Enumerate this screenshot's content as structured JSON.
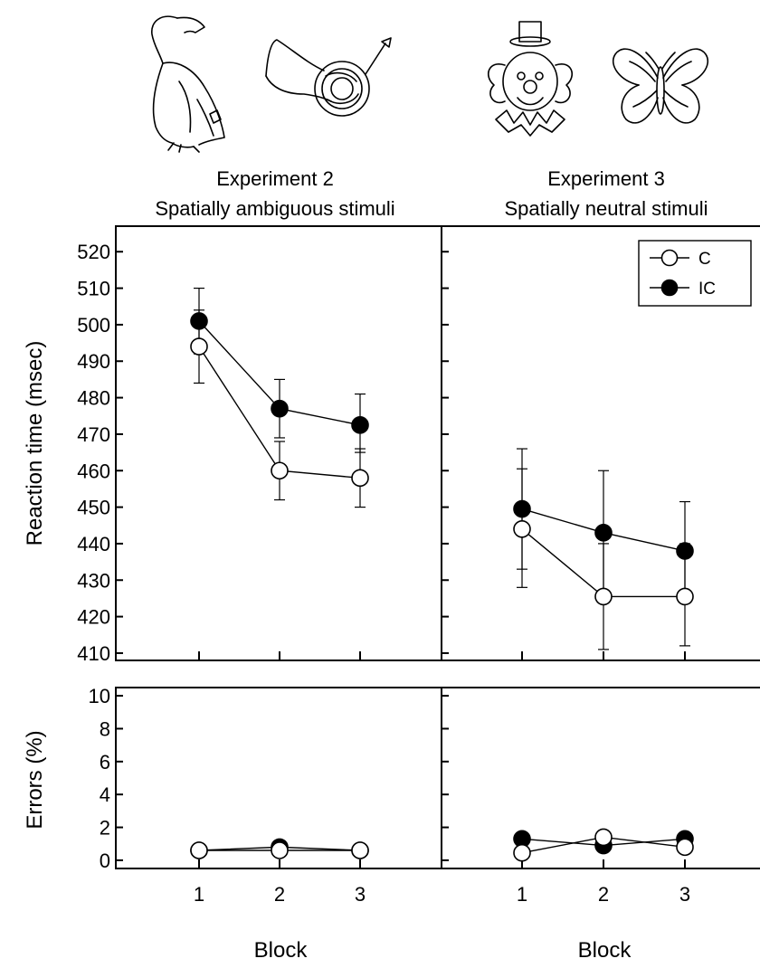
{
  "panels": [
    {
      "title_line1": "Experiment 2",
      "title_line2": "Spatially ambiguous stimuli"
    },
    {
      "title_line1": "Experiment 3",
      "title_line2": "Spatially neutral stimuli"
    }
  ],
  "icons": [
    "eagle-icon",
    "french-horn-icon",
    "clown-icon",
    "butterfly-icon"
  ],
  "legend": {
    "entries": [
      {
        "label": "C",
        "marker": "open-circle"
      },
      {
        "label": "IC",
        "marker": "filled-circle"
      }
    ]
  },
  "chart_data": [
    {
      "type": "line",
      "panel": "Experiment 2 / Spatially ambiguous stimuli",
      "measure": "reaction_time",
      "x": [
        1,
        2,
        3
      ],
      "ylabel": "Reaction time (msec)",
      "ylim": [
        408,
        527
      ],
      "yticks": [
        410,
        420,
        430,
        440,
        450,
        460,
        470,
        480,
        490,
        500,
        510,
        520
      ],
      "series": [
        {
          "name": "C",
          "marker": "open",
          "values": [
            494,
            460,
            458
          ],
          "err_low": [
            484,
            452,
            450
          ],
          "err_high": [
            504,
            468,
            466
          ]
        },
        {
          "name": "IC",
          "marker": "filled",
          "values": [
            501,
            477,
            472.5
          ],
          "err_low": [
            492,
            469,
            465
          ],
          "err_high": [
            510,
            485,
            481
          ]
        }
      ]
    },
    {
      "type": "line",
      "panel": "Experiment 3 / Spatially neutral stimuli",
      "measure": "reaction_time",
      "x": [
        1,
        2,
        3
      ],
      "ylim": [
        408,
        527
      ],
      "series": [
        {
          "name": "C",
          "marker": "open",
          "values": [
            444,
            425.5,
            425.5
          ],
          "err_low": [
            428,
            411,
            412
          ],
          "err_high": [
            460.5,
            440,
            440
          ]
        },
        {
          "name": "IC",
          "marker": "filled",
          "values": [
            449.5,
            443,
            438
          ],
          "err_low": [
            433,
            426,
            424.5
          ],
          "err_high": [
            466,
            460,
            451.5
          ]
        }
      ]
    },
    {
      "type": "line",
      "panel": "Experiment 2 / Spatially ambiguous stimuli",
      "measure": "errors",
      "x": [
        1,
        2,
        3
      ],
      "xlabel": "Block",
      "xticks": [
        "1",
        "2",
        "3"
      ],
      "ylabel": "Errors (%)",
      "ylim": [
        -0.5,
        10.5
      ],
      "yticks": [
        0,
        2,
        4,
        6,
        8,
        10
      ],
      "series": [
        {
          "name": "C",
          "marker": "open",
          "values": [
            0.6,
            0.6,
            0.6
          ]
        },
        {
          "name": "IC",
          "marker": "filled",
          "values": [
            0.6,
            0.8,
            0.6
          ]
        }
      ]
    },
    {
      "type": "line",
      "panel": "Experiment 3 / Spatially neutral stimuli",
      "measure": "errors",
      "x": [
        1,
        2,
        3
      ],
      "xlabel": "Block",
      "xticks": [
        "1",
        "2",
        "3"
      ],
      "ylim": [
        -0.5,
        10.5
      ],
      "series": [
        {
          "name": "C",
          "marker": "open",
          "values": [
            0.45,
            1.4,
            0.8
          ]
        },
        {
          "name": "IC",
          "marker": "filled",
          "values": [
            1.3,
            0.9,
            1.3
          ]
        }
      ]
    }
  ]
}
